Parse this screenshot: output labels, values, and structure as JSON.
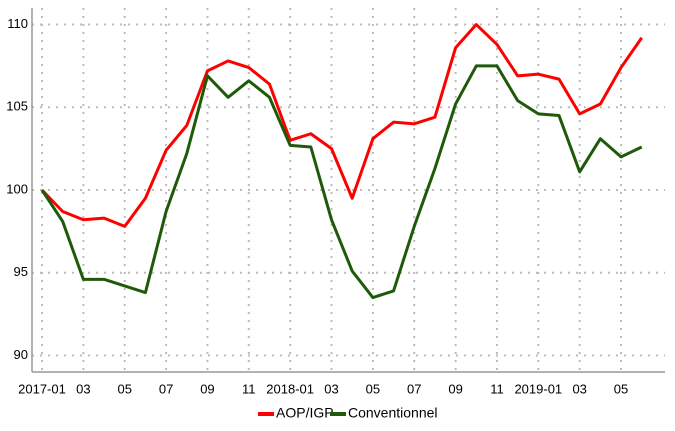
{
  "chart_data": {
    "type": "line",
    "categories": [
      "2017-01",
      null,
      "03",
      null,
      "05",
      null,
      "07",
      null,
      "09",
      null,
      "11",
      null,
      "2018-01",
      null,
      "03",
      null,
      "05",
      null,
      "07",
      null,
      "09",
      null,
      "11",
      null,
      "2019-01",
      null,
      "03",
      null,
      "05",
      null
    ],
    "series": [
      {
        "name": "AOP/IGP",
        "color": "#ff0000",
        "values": [
          100,
          98.7,
          98.2,
          98.3,
          97.8,
          99.5,
          102.4,
          103.9,
          107.2,
          107.8,
          107.4,
          106.4,
          103.0,
          103.4,
          102.5,
          99.5,
          103.1,
          104.1,
          104.0,
          104.4,
          108.6,
          110.0,
          108.8,
          106.9,
          107.0,
          106.7,
          104.6,
          105.2,
          107.4,
          109.2
        ]
      },
      {
        "name": "Conventionnel",
        "color": "#1e5a0a",
        "values": [
          100,
          98.1,
          94.6,
          94.6,
          94.2,
          93.8,
          98.7,
          102.2,
          106.9,
          105.6,
          106.6,
          105.6,
          102.7,
          102.6,
          98.2,
          95.1,
          93.5,
          93.9,
          97.8,
          101.3,
          105.2,
          107.5,
          107.5,
          105.4,
          104.6,
          104.5,
          101.1,
          103.1,
          102.0,
          102.6
        ]
      }
    ],
    "ylim": [
      89,
      111
    ],
    "yticks": [
      90,
      95,
      100,
      105,
      110
    ],
    "grid": true,
    "legend": "bottom"
  }
}
